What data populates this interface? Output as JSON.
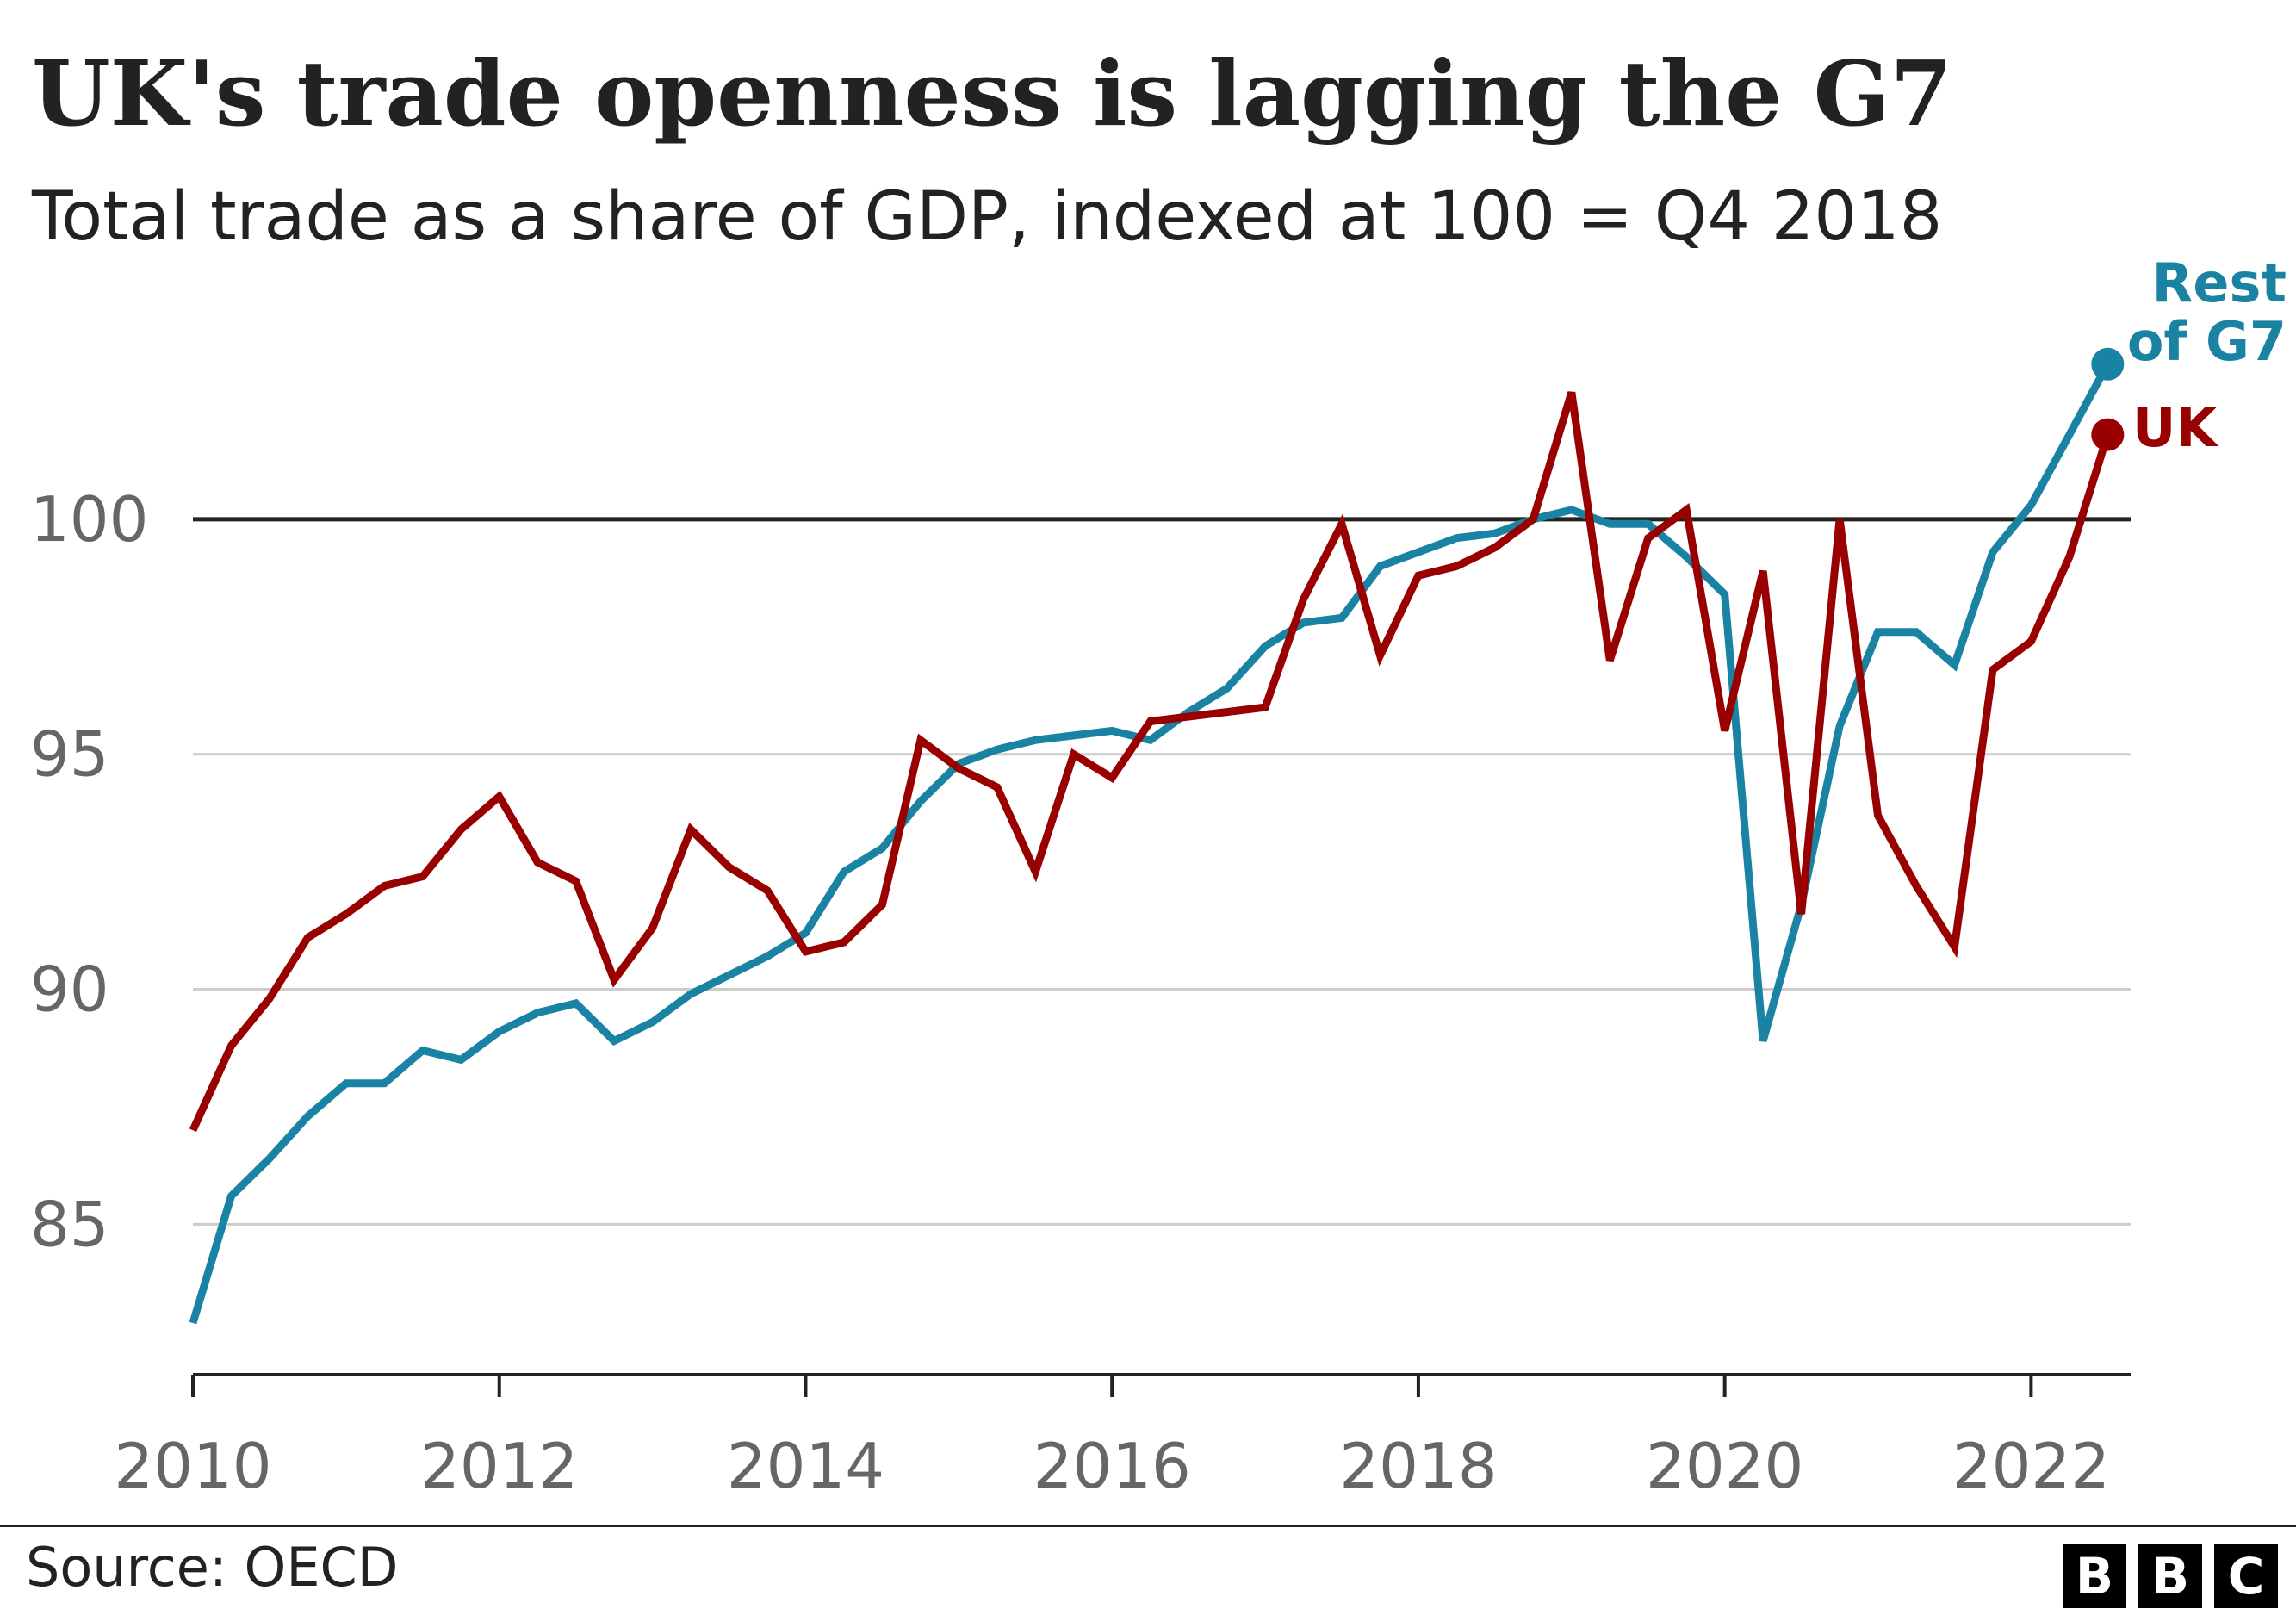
{
  "chart_data": {
    "type": "line",
    "title": "UK's trade openness is lagging the G7",
    "subtitle": "Total trade as a share of GDP, indexed at 100 = Q4 2018",
    "source": "Source: OECD",
    "x_tick_labels": [
      "2010",
      "2012",
      "2014",
      "2016",
      "2018",
      "2020",
      "2022"
    ],
    "y_tick_labels": [
      "85",
      "90",
      "95",
      "100"
    ],
    "ylim": [
      81.8,
      105
    ],
    "xlim": [
      2010,
      2022.65
    ],
    "reference_line": 100,
    "grid": true,
    "x": [
      2010.0,
      2010.25,
      2010.5,
      2010.75,
      2011.0,
      2011.25,
      2011.5,
      2011.75,
      2012.0,
      2012.25,
      2012.5,
      2012.75,
      2013.0,
      2013.25,
      2013.5,
      2013.75,
      2014.0,
      2014.25,
      2014.5,
      2014.75,
      2015.0,
      2015.25,
      2015.5,
      2015.75,
      2016.0,
      2016.25,
      2016.5,
      2016.75,
      2017.0,
      2017.25,
      2017.5,
      2017.75,
      2018.0,
      2018.25,
      2018.5,
      2018.75,
      2019.0,
      2019.25,
      2019.5,
      2019.75,
      2020.0,
      2020.25,
      2020.5,
      2020.75,
      2021.0,
      2021.25,
      2021.5,
      2021.75,
      2022.0,
      2022.25,
      2022.5
    ],
    "series": [
      {
        "name": "Rest of G7",
        "color": "#1a83a3",
        "values": [
          82.9,
          85.6,
          86.4,
          87.3,
          88.0,
          88.0,
          88.7,
          88.5,
          89.1,
          89.5,
          89.7,
          88.9,
          89.3,
          89.9,
          90.3,
          90.7,
          91.2,
          92.5,
          93.0,
          94.0,
          94.8,
          95.1,
          95.3,
          95.4,
          95.5,
          95.3,
          95.9,
          96.4,
          97.3,
          97.8,
          97.9,
          99.0,
          99.3,
          99.6,
          99.7,
          100.0,
          100.2,
          99.9,
          99.9,
          99.2,
          98.4,
          88.9,
          91.8,
          95.6,
          97.6,
          97.6,
          96.9,
          99.3,
          100.3,
          101.8,
          103.3
        ]
      },
      {
        "name": "UK",
        "color": "#990000",
        "values": [
          87.0,
          88.8,
          89.8,
          91.1,
          91.6,
          92.2,
          92.4,
          93.4,
          94.1,
          92.7,
          92.3,
          90.2,
          91.3,
          93.4,
          92.6,
          92.1,
          90.8,
          91.0,
          91.8,
          95.3,
          94.7,
          94.3,
          92.5,
          95.0,
          94.5,
          95.7,
          95.8,
          95.9,
          96.0,
          98.3,
          99.9,
          97.1,
          98.8,
          99.0,
          99.4,
          100.0,
          102.7,
          97.0,
          99.6,
          100.2,
          95.5,
          98.9,
          91.6,
          100.0,
          93.7,
          92.2,
          90.9,
          96.8,
          97.4,
          99.2,
          101.8
        ]
      }
    ],
    "legend": "direct labels at line ends"
  },
  "logo": {
    "letters": [
      "B",
      "B",
      "C"
    ]
  }
}
